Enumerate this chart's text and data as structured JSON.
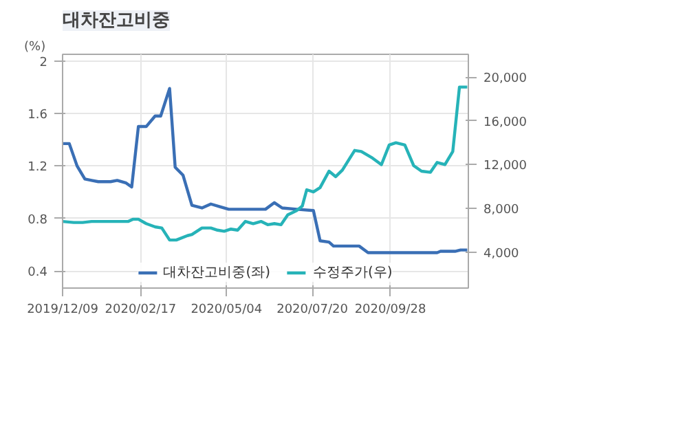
{
  "chart_data": {
    "type": "line",
    "title": "대차잔고비중",
    "ylabel": "(%)",
    "xlim": [
      "2019-12-09",
      "2020-12-07"
    ],
    "xticks": [
      {
        "value": "2019-12-09",
        "label": "2019/12/09"
      },
      {
        "value": "2020-02-17",
        "label": "2020/02/17"
      },
      {
        "value": "2020-05-04",
        "label": "2020/05/04"
      },
      {
        "value": "2020-07-20",
        "label": "2020/07/20"
      },
      {
        "value": "2020-09-28",
        "label": "2020/09/28"
      }
    ],
    "ylim": [
      0.27,
      2.05
    ],
    "yticks": [
      0.4,
      0.8,
      1.2,
      1.6,
      2
    ],
    "y2lim": [
      700,
      22100
    ],
    "y2ticks": [
      {
        "value": 4000,
        "label": "4,000"
      },
      {
        "value": 8000,
        "label": "8,000"
      },
      {
        "value": 12000,
        "label": "12,000"
      },
      {
        "value": 16000,
        "label": "16,000"
      },
      {
        "value": 20000,
        "label": "20,000"
      }
    ],
    "grid": true,
    "legend": "bottom",
    "marker": "none",
    "line_style": "solid",
    "series": [
      {
        "name": "대차잔고비중(좌)",
        "color": "#3a6fb5",
        "x": [
          "2019-12-09",
          "2019-12-15",
          "2019-12-22",
          "2019-12-29",
          "2020-01-04",
          "2020-01-10",
          "2020-01-21",
          "2020-01-27",
          "2020-02-04",
          "2020-02-09",
          "2020-02-15",
          "2020-02-22",
          "2020-03-01",
          "2020-03-06",
          "2020-03-14",
          "2020-03-19",
          "2020-03-26",
          "2020-04-03",
          "2020-04-12",
          "2020-04-20",
          "2020-04-28",
          "2020-05-06",
          "2020-05-22",
          "2020-06-08",
          "2020-06-16",
          "2020-06-23",
          "2020-07-06",
          "2020-07-21",
          "2020-07-27",
          "2020-08-04",
          "2020-08-08",
          "2020-08-31",
          "2020-09-08",
          "2020-11-09",
          "2020-11-12",
          "2020-11-25",
          "2020-11-30",
          "2020-12-06"
        ],
        "values": [
          1.37,
          1.37,
          1.2,
          1.1,
          1.09,
          1.08,
          1.08,
          1.09,
          1.07,
          1.04,
          1.5,
          1.5,
          1.58,
          1.58,
          1.79,
          1.19,
          1.13,
          0.9,
          0.88,
          0.91,
          0.89,
          0.87,
          0.87,
          0.87,
          0.92,
          0.88,
          0.87,
          0.86,
          0.63,
          0.62,
          0.59,
          0.59,
          0.54,
          0.54,
          0.55,
          0.55,
          0.56,
          0.56
        ]
      },
      {
        "name": "수정주가(우)",
        "color": "#26b3b8",
        "axis": "y2",
        "x": [
          "2019-12-09",
          "2019-12-19",
          "2019-12-27",
          "2020-01-04",
          "2020-01-12",
          "2020-01-21",
          "2020-02-06",
          "2020-02-10",
          "2020-02-15",
          "2020-02-22",
          "2020-03-01",
          "2020-03-07",
          "2020-03-14",
          "2020-03-20",
          "2020-03-30",
          "2020-04-03",
          "2020-04-12",
          "2020-04-20",
          "2020-04-26",
          "2020-05-02",
          "2020-05-08",
          "2020-05-14",
          "2020-05-21",
          "2020-05-28",
          "2020-06-04",
          "2020-06-10",
          "2020-06-16",
          "2020-06-22",
          "2020-06-28",
          "2020-07-06",
          "2020-07-11",
          "2020-07-15",
          "2020-07-21",
          "2020-07-27",
          "2020-08-04",
          "2020-08-10",
          "2020-08-16",
          "2020-08-27",
          "2020-09-02",
          "2020-09-12",
          "2020-09-20",
          "2020-09-27",
          "2020-10-03",
          "2020-10-11",
          "2020-10-19",
          "2020-10-26",
          "2020-11-03",
          "2020-11-09",
          "2020-11-16",
          "2020-11-23",
          "2020-11-29",
          "2020-12-06"
        ],
        "values": [
          6800,
          6700,
          6700,
          6800,
          6800,
          6800,
          6800,
          7000,
          7000,
          6600,
          6300,
          6200,
          5100,
          5100,
          5500,
          5600,
          6200,
          6200,
          6000,
          5900,
          6100,
          6000,
          6800,
          6600,
          6800,
          6500,
          6600,
          6500,
          7400,
          7800,
          8200,
          9700,
          9500,
          9900,
          11400,
          10900,
          11500,
          13300,
          13200,
          12600,
          12000,
          13800,
          14000,
          13800,
          11900,
          11400,
          11300,
          12200,
          12000,
          13200,
          19100,
          19100
        ]
      }
    ]
  }
}
